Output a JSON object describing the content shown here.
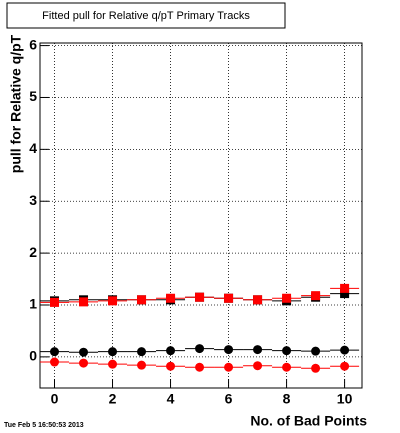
{
  "chart_data": {
    "type": "scatter",
    "title": "Fitted pull for Relative q/pT Primary Tracks",
    "xlabel": "No. of Bad Points",
    "ylabel": "pull for Relative q/pT",
    "timestamp": "Tue Feb  5 16:50:53 2013",
    "x": [
      0,
      1,
      2,
      3,
      4,
      5,
      6,
      7,
      8,
      9,
      10
    ],
    "xlim": [
      -0.5,
      10.6
    ],
    "ylim": [
      -0.6,
      6.05
    ],
    "xticks": [
      0,
      2,
      4,
      6,
      8,
      10
    ],
    "yticks": [
      0,
      1,
      2,
      3,
      4,
      5,
      6
    ],
    "grid": true,
    "series": [
      {
        "color": "#000000",
        "marker": "square",
        "values": [
          1.08,
          1.1,
          1.1,
          1.1,
          1.1,
          1.15,
          1.13,
          1.1,
          1.08,
          1.15,
          1.22
        ]
      },
      {
        "color": "#ff0000",
        "marker": "square",
        "values": [
          1.05,
          1.06,
          1.08,
          1.1,
          1.13,
          1.15,
          1.13,
          1.1,
          1.13,
          1.18,
          1.32
        ]
      },
      {
        "color": "#000000",
        "marker": "circle",
        "values": [
          0.1,
          0.09,
          0.1,
          0.1,
          0.12,
          0.16,
          0.14,
          0.14,
          0.12,
          0.11,
          0.13
        ]
      },
      {
        "color": "#ff0000",
        "marker": "circle",
        "values": [
          -0.1,
          -0.12,
          -0.14,
          -0.16,
          -0.18,
          -0.2,
          -0.2,
          -0.17,
          -0.2,
          -0.22,
          -0.18
        ]
      }
    ]
  }
}
